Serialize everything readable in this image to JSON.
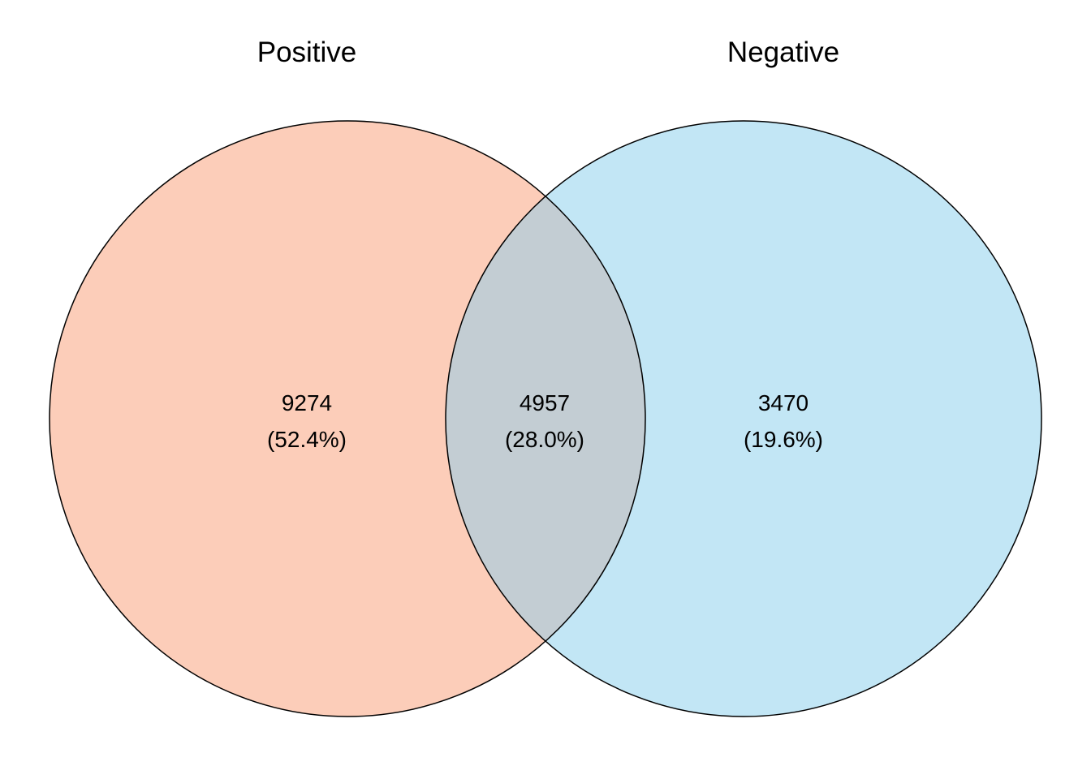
{
  "diagram": {
    "type": "venn",
    "sets": [
      {
        "name": "Positive",
        "color": "#FCCDB9"
      },
      {
        "name": "Negative",
        "color": "#C2E6F5"
      }
    ],
    "overlap_color": "#C3CDD3",
    "outline_color": "#000000",
    "regions": {
      "positive_only": {
        "count": "9274",
        "percent": "(52.4%)"
      },
      "both": {
        "count": "4957",
        "percent": "(28.0%)"
      },
      "negative_only": {
        "count": "3470",
        "percent": "(19.6%)"
      }
    }
  }
}
